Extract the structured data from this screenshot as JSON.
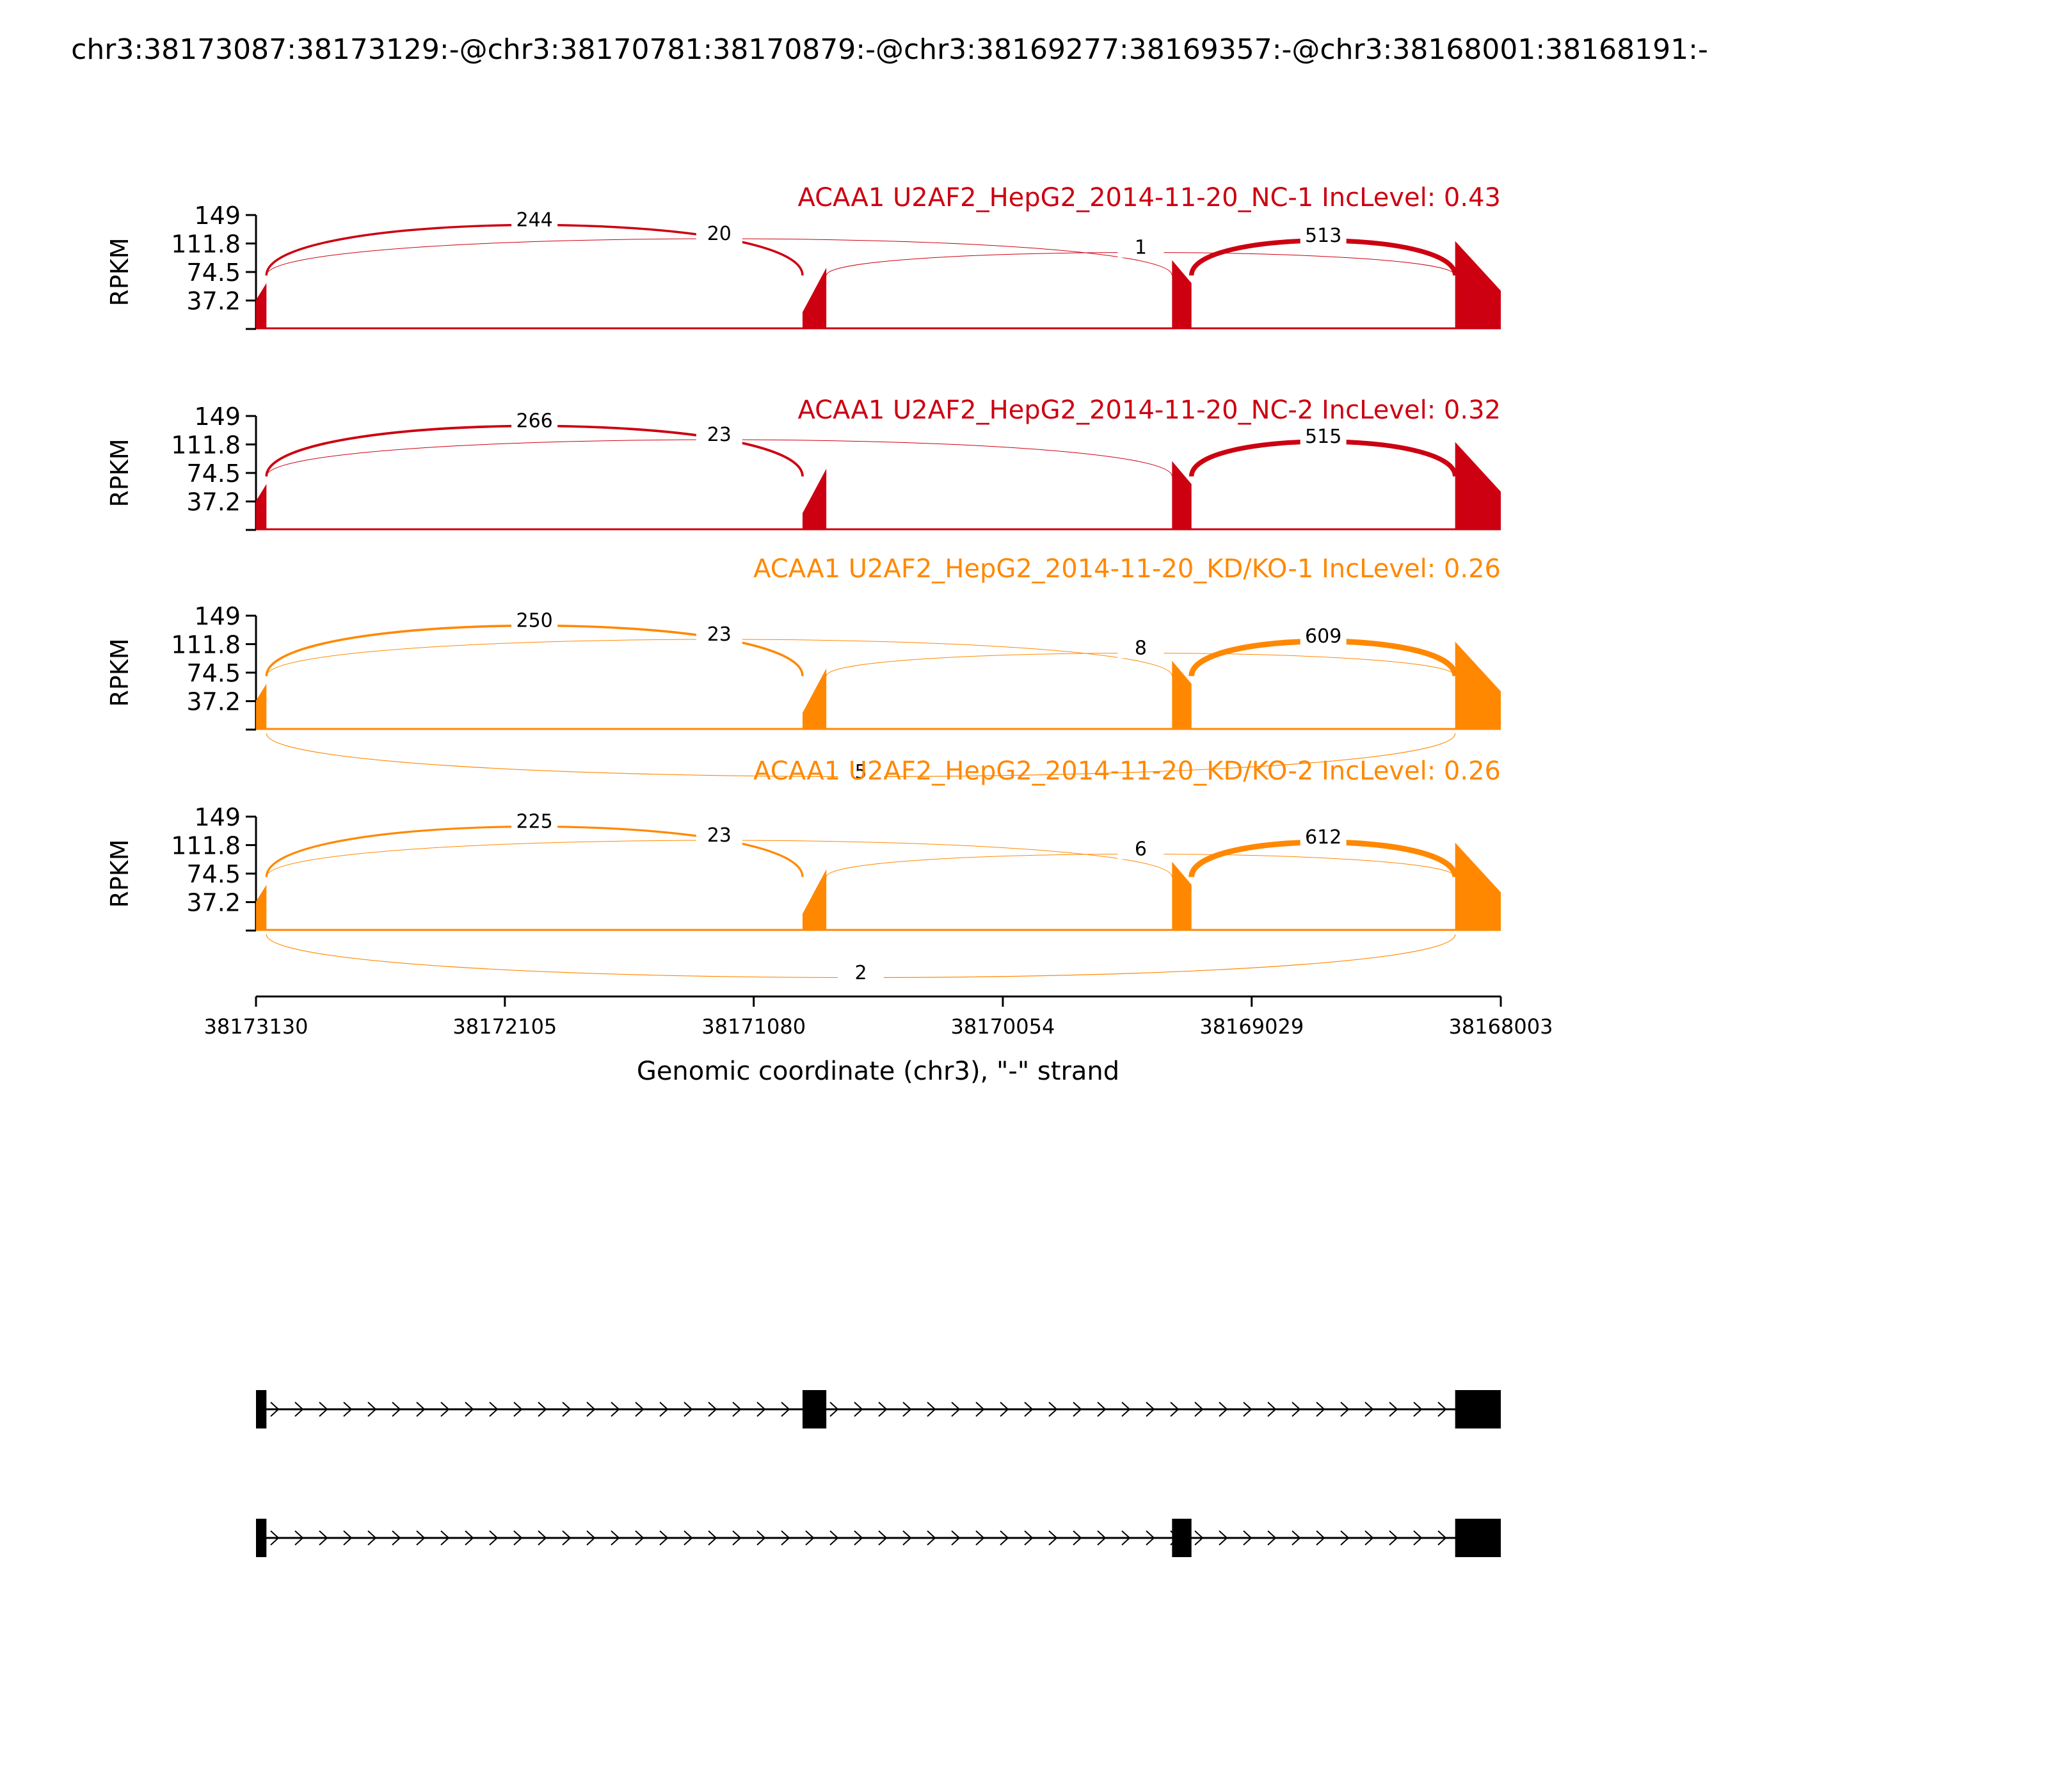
{
  "chart_data": {
    "type": "area",
    "title": "chr3:38173087:38173129:-@chr3:38170781:38170879:-@chr3:38169277:38169357:-@chr3:38168001:38168191:-",
    "xlabel": "Genomic coordinate (chr3), \"-\" strand",
    "ylabel": "RPKM",
    "x_ticks": [
      "38173130",
      "38172105",
      "38171080",
      "38170054",
      "38169029",
      "38168003"
    ],
    "xlim": [
      38173130,
      38168003
    ],
    "x_reversed": true,
    "ylim": [
      0,
      149
    ],
    "y_ticks": [
      "149",
      "111.8",
      "74.5",
      "37.2"
    ],
    "colors": {
      "nc": "#CC0011",
      "kd": "#FF8800",
      "structure": "#000000"
    },
    "exons": [
      {
        "start": 38173130,
        "end": 38173087
      },
      {
        "start": 38170879,
        "end": 38170781
      },
      {
        "start": 38169357,
        "end": 38169277
      },
      {
        "start": 38168191,
        "end": 38168003
      }
    ],
    "coverage_profile": [
      {
        "exon": 1,
        "start": 38173130,
        "end": 38173087,
        "left": 38,
        "right": 60
      },
      {
        "exon": 2,
        "start": 38170879,
        "end": 38170781,
        "left": 22,
        "right": 80
      },
      {
        "exon": 3,
        "start": 38169357,
        "end": 38169277,
        "left": 90,
        "right": 60
      },
      {
        "exon": 4,
        "start": 38168191,
        "end": 38168003,
        "left": 115,
        "right": 50
      }
    ],
    "series": [
      {
        "name": "ACAA1 U2AF2_HepG2_2014-11-20_NC-1 IncLevel: 0.43",
        "color": "#CC0011",
        "junctions": [
          {
            "from": 38173087,
            "to": 38170879,
            "count": "244"
          },
          {
            "from": 38173087,
            "to": 38169357,
            "count": "20"
          },
          {
            "from": 38170781,
            "to": 38168191,
            "count": "1"
          },
          {
            "from": 38169277,
            "to": 38168191,
            "count": "513"
          }
        ]
      },
      {
        "name": "ACAA1 U2AF2_HepG2_2014-11-20_NC-2 IncLevel: 0.32",
        "color": "#CC0011",
        "junctions": [
          {
            "from": 38173087,
            "to": 38170879,
            "count": "266"
          },
          {
            "from": 38173087,
            "to": 38169357,
            "count": "23"
          },
          {
            "from": 38169277,
            "to": 38168191,
            "count": "515"
          }
        ]
      },
      {
        "name": "ACAA1 U2AF2_HepG2_2014-11-20_KD/KO-1 IncLevel: 0.26",
        "color": "#FF8800",
        "junctions": [
          {
            "from": 38173087,
            "to": 38170879,
            "count": "250"
          },
          {
            "from": 38173087,
            "to": 38169357,
            "count": "23"
          },
          {
            "from": 38170781,
            "to": 38168191,
            "count": "8"
          },
          {
            "from": 38169277,
            "to": 38168191,
            "count": "609"
          },
          {
            "from": 38173087,
            "to": 38168191,
            "count": "5",
            "below": true
          }
        ]
      },
      {
        "name": "ACAA1 U2AF2_HepG2_2014-11-20_KD/KO-2 IncLevel: 0.26",
        "color": "#FF8800",
        "junctions": [
          {
            "from": 38173087,
            "to": 38170879,
            "count": "225"
          },
          {
            "from": 38173087,
            "to": 38169357,
            "count": "23"
          },
          {
            "from": 38170781,
            "to": 38168191,
            "count": "6"
          },
          {
            "from": 38169277,
            "to": 38168191,
            "count": "612"
          },
          {
            "from": 38173087,
            "to": 38168191,
            "count": "2",
            "below": true
          }
        ]
      }
    ],
    "transcripts": [
      {
        "exons": [
          [
            38173130,
            38173087
          ],
          [
            38170879,
            38170781
          ],
          [
            38168191,
            38168003
          ]
        ]
      },
      {
        "exons": [
          [
            38173130,
            38173087
          ],
          [
            38169357,
            38169277
          ],
          [
            38168191,
            38168003
          ]
        ]
      }
    ]
  }
}
